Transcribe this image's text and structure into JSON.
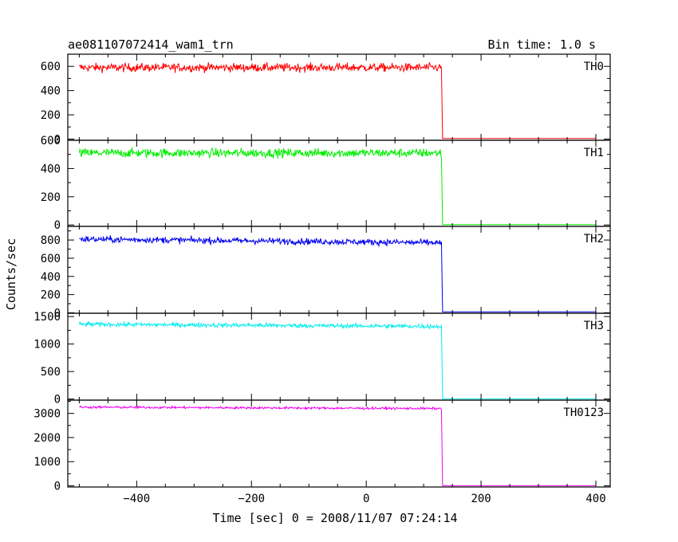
{
  "header": {
    "title": "ae081107072414_wam1_trn",
    "bin_time": "Bin time: 1.0 s"
  },
  "chart_data": {
    "type": "line",
    "title": "ae081107072414_wam1_trn",
    "subtitle": "Bin time: 1.0 s",
    "xlabel": "Time [sec] 0 = 2008/11/07 07:24:14",
    "ylabel": "Counts/sec",
    "xlim": [
      -520,
      425
    ],
    "x_ticks": [
      -400,
      -200,
      0,
      200,
      400
    ],
    "x_tick_labels": [
      "−400",
      "−200",
      "0",
      "200",
      "400"
    ],
    "drop_time": 131,
    "x_start": -500,
    "x_end": 400,
    "grid": false,
    "panels": [
      {
        "name": "TH0",
        "color": "#ff0000",
        "ylim": [
          -10,
          700
        ],
        "yticks": [
          0,
          200,
          400,
          600
        ],
        "ytick_labels": [
          "0",
          "200",
          "400",
          "600"
        ],
        "level": 590,
        "noise": 60,
        "trend": 0,
        "after": 5
      },
      {
        "name": "TH1",
        "color": "#00ee00",
        "ylim": [
          -10,
          600
        ],
        "yticks": [
          0,
          200,
          400,
          600
        ],
        "ytick_labels": [
          "0",
          "200",
          "400",
          "600"
        ],
        "level": 510,
        "noise": 55,
        "trend": 0,
        "after": 3
      },
      {
        "name": "TH2",
        "color": "#0000ee",
        "ylim": [
          -5,
          950
        ],
        "yticks": [
          0,
          200,
          400,
          600,
          800
        ],
        "ytick_labels": [
          "0",
          "200",
          "400",
          "600",
          "800"
        ],
        "level": 810,
        "noise": 60,
        "trend": -40,
        "after": 10
      },
      {
        "name": "TH3",
        "color": "#00eeee",
        "ylim": [
          -20,
          1560
        ],
        "yticks": [
          0,
          500,
          1000,
          1500
        ],
        "ytick_labels": [
          "0",
          "500",
          "1000",
          "1500"
        ],
        "level": 1360,
        "noise": 70,
        "trend": -40,
        "after": 5
      },
      {
        "name": "TH0123",
        "color": "#ee00ee",
        "ylim": [
          -50,
          3550
        ],
        "yticks": [
          0,
          1000,
          2000,
          3000
        ],
        "ytick_labels": [
          "0",
          "1000",
          "2000",
          "3000"
        ],
        "level": 3260,
        "noise": 80,
        "trend": -60,
        "after": 5
      }
    ]
  }
}
